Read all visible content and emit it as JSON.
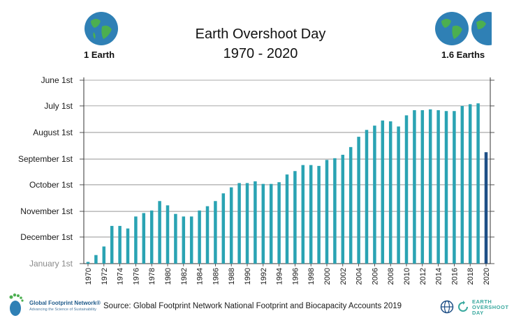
{
  "header": {
    "title_line1": "Earth Overshoot Day",
    "title_line2": "1970 - 2020",
    "left_label": "1 Earth",
    "right_label": "1.6 Earths"
  },
  "footer": {
    "source": "Source: Global Footprint Network National Footprint and Biocapacity Accounts 2019",
    "gfn_name": "Global Footprint Network®",
    "gfn_tagline": "Advancing the Science of Sustainability",
    "eod_line1": "EARTH",
    "eod_line2": "OVERSHOOT",
    "eod_line3": "DAY"
  },
  "colors": {
    "bar": "#2aa3b3",
    "bar_highlight": "#1e4f86",
    "grid": "#555555",
    "globe_ocean": "#2f80b5",
    "globe_land": "#4caf50"
  },
  "chart_data": {
    "type": "bar",
    "y_scale_note": "y values are day of year (1 = January 1st); axis inverted with June at top",
    "y_ticks": [
      {
        "label": "June 1st",
        "value": 152
      },
      {
        "label": "July 1st",
        "value": 182
      },
      {
        "label": "August 1st",
        "value": 213
      },
      {
        "label": "September 1st",
        "value": 244
      },
      {
        "label": "October 1st",
        "value": 274
      },
      {
        "label": "November 1st",
        "value": 305
      },
      {
        "label": "December 1st",
        "value": 335
      },
      {
        "label": "January 1st",
        "value": 366
      }
    ],
    "ylim": [
      366,
      152
    ],
    "x_tick_labels": [
      "1970",
      "1972",
      "1974",
      "1976",
      "1978",
      "1980",
      "1982",
      "1984",
      "1986",
      "1988",
      "1990",
      "1992",
      "1994",
      "1996",
      "1998",
      "2000",
      "2002",
      "2004",
      "2006",
      "2008",
      "2010",
      "2012",
      "2014",
      "2016",
      "2018",
      "2020"
    ],
    "categories": [
      "1970",
      "1971",
      "1972",
      "1973",
      "1974",
      "1975",
      "1976",
      "1977",
      "1978",
      "1979",
      "1980",
      "1981",
      "1982",
      "1983",
      "1984",
      "1985",
      "1986",
      "1987",
      "1988",
      "1989",
      "1990",
      "1991",
      "1992",
      "1993",
      "1994",
      "1995",
      "1996",
      "1997",
      "1998",
      "1999",
      "2000",
      "2001",
      "2002",
      "2003",
      "2004",
      "2005",
      "2006",
      "2007",
      "2008",
      "2009",
      "2010",
      "2011",
      "2012",
      "2013",
      "2014",
      "2015",
      "2016",
      "2017",
      "2018",
      "2019",
      "2020"
    ],
    "values": [
      364,
      356,
      346,
      322,
      322,
      325,
      311,
      307,
      304,
      293,
      298,
      308,
      311,
      311,
      304,
      299,
      293,
      284,
      277,
      272,
      272,
      270,
      273,
      273,
      271,
      262,
      258,
      251,
      251,
      252,
      245,
      243,
      239,
      230,
      218,
      210,
      205,
      199,
      200,
      206,
      193,
      187,
      187,
      186,
      187,
      188,
      188,
      182,
      180,
      179,
      236
    ],
    "highlight_index": 50
  }
}
